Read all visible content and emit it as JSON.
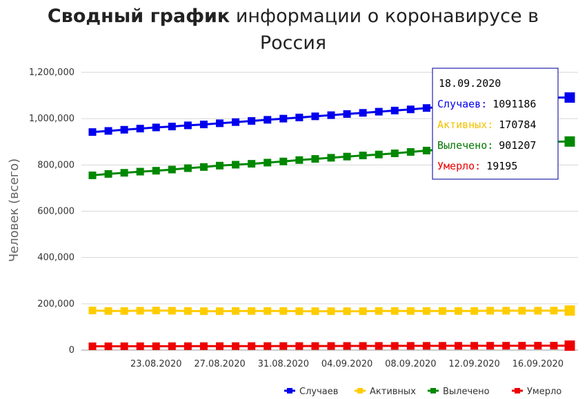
{
  "chart_data": {
    "type": "line",
    "title_bold": "Сводный график",
    "title_rest": " информации о коронавирусе в",
    "title_line2": "Россия",
    "ylabel": "Человек (всего)",
    "ylim": [
      0,
      1200000
    ],
    "yticks": [
      "1,200,000",
      "1,000,000",
      "800,000",
      "600,000",
      "400,000",
      "200,000",
      "0"
    ],
    "ytick_values": [
      1200000,
      1000000,
      800000,
      600000,
      400000,
      200000,
      0
    ],
    "dates": [
      "19.08.2020",
      "20.08.2020",
      "21.08.2020",
      "22.08.2020",
      "23.08.2020",
      "24.08.2020",
      "25.08.2020",
      "26.08.2020",
      "27.08.2020",
      "28.08.2020",
      "29.08.2020",
      "30.08.2020",
      "31.08.2020",
      "01.09.2020",
      "02.09.2020",
      "03.09.2020",
      "04.09.2020",
      "05.09.2020",
      "06.09.2020",
      "07.09.2020",
      "08.09.2020",
      "09.09.2020",
      "10.09.2020",
      "11.09.2020",
      "12.09.2020",
      "13.09.2020",
      "14.09.2020",
      "15.09.2020",
      "16.09.2020",
      "17.09.2020",
      "18.09.2020"
    ],
    "xticks": [
      "23.08.2020",
      "27.08.2020",
      "31.08.2020",
      "04.09.2020",
      "08.09.2020",
      "12.09.2020",
      "16.09.2020"
    ],
    "xtick_indices": [
      4,
      8,
      12,
      16,
      20,
      24,
      28
    ],
    "series": [
      {
        "name": "Случаев",
        "color": "#0000ee",
        "values": [
          942000,
          947000,
          952000,
          957000,
          962000,
          966000,
          971000,
          975000,
          980000,
          985000,
          990000,
          995000,
          1000000,
          1005000,
          1010000,
          1015000,
          1020000,
          1025000,
          1030000,
          1035000,
          1040000,
          1046000,
          1051000,
          1057000,
          1062000,
          1068000,
          1073000,
          1079000,
          1085000,
          1091000,
          1091186
        ]
      },
      {
        "name": "Активных",
        "color": "#ffcc00",
        "values": [
          171000,
          169000,
          169000,
          170000,
          171000,
          170000,
          169000,
          168000,
          168000,
          169000,
          169000,
          169000,
          169000,
          168000,
          168000,
          168000,
          168000,
          168000,
          169000,
          169000,
          169000,
          169000,
          169000,
          169000,
          169000,
          170000,
          170000,
          170000,
          170000,
          170500,
          170784
        ]
      },
      {
        "name": "Вылечено",
        "color": "#008800",
        "values": [
          755000,
          761000,
          766000,
          771000,
          775000,
          780000,
          786000,
          791000,
          797000,
          801000,
          805000,
          810000,
          815000,
          821000,
          826000,
          831000,
          836000,
          841000,
          845000,
          850000,
          856000,
          862000,
          867000,
          873000,
          878000,
          884000,
          889000,
          893000,
          897000,
          900000,
          901207
        ]
      },
      {
        "name": "Умерло",
        "color": "#ee0000",
        "values": [
          16300,
          16400,
          16500,
          16600,
          16700,
          16800,
          16900,
          17000,
          17100,
          17200,
          17300,
          17400,
          17500,
          17500,
          17600,
          17700,
          17800,
          17900,
          18000,
          18100,
          18200,
          18300,
          18400,
          18500,
          18600,
          18700,
          18800,
          18900,
          19000,
          19100,
          19195
        ]
      }
    ],
    "legend": [
      "Случаев",
      "Активных",
      "Вылечено",
      "Умерло"
    ],
    "legend_position": "bottom-right",
    "grid": true,
    "tooltip": {
      "date": "18.09.2020",
      "rows": [
        {
          "label": "Случаев:",
          "value": "1091186",
          "color": "#0000ee"
        },
        {
          "label": "Активных:",
          "value": "170784",
          "color": "#f2c200"
        },
        {
          "label": "Вылечено:",
          "value": "901207",
          "color": "#007700"
        },
        {
          "label": "Умерло:",
          "value": "19195",
          "color": "#ee0000"
        }
      ]
    }
  }
}
